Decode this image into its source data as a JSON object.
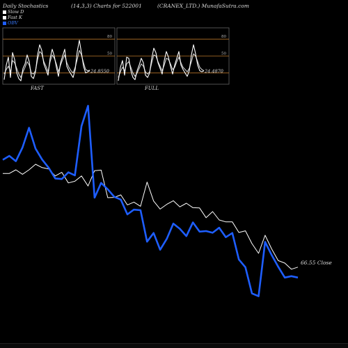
{
  "header": {
    "left": "Daily Stochastics",
    "mid": "(14,3,3) Charts for 522001",
    "right": "(CRANEX_LTD.) MunafaSutra.com"
  },
  "legend": {
    "slow": "Slow  D",
    "fast": "Fast K",
    "obv": "OBV"
  },
  "colors": {
    "obv": "#1e5eff",
    "price": "#ffffff",
    "band": "#b5742a"
  },
  "chart_data": [
    {
      "type": "line",
      "name": "FAST",
      "ylim": [
        0,
        100
      ],
      "levels": [
        80,
        50,
        20
      ],
      "tick_labels": [
        "80",
        "50"
      ],
      "last_value_label": "24.8550",
      "series": [
        {
          "name": "Slow D",
          "values": [
            18,
            26,
            32,
            22,
            42,
            38,
            28,
            18,
            12,
            22,
            30,
            40,
            34,
            20,
            18,
            24,
            44,
            58,
            54,
            40,
            32,
            22,
            40,
            52,
            46,
            36,
            22,
            34,
            44,
            52,
            38,
            30,
            24,
            20,
            30,
            44,
            60,
            52,
            38,
            26,
            24,
            25
          ]
        },
        {
          "name": "Fast K",
          "values": [
            8,
            34,
            48,
            12,
            56,
            44,
            20,
            10,
            6,
            28,
            36,
            52,
            40,
            14,
            10,
            22,
            52,
            70,
            60,
            36,
            26,
            16,
            46,
            62,
            50,
            30,
            14,
            38,
            50,
            62,
            32,
            24,
            18,
            12,
            26,
            58,
            78,
            56,
            32,
            20,
            22,
            24
          ]
        }
      ]
    },
    {
      "type": "line",
      "name": "FULL",
      "ylim": [
        0,
        100
      ],
      "levels": [
        80,
        50,
        20
      ],
      "tick_labels": [
        "80",
        "50"
      ],
      "last_value_label": "24.4870",
      "series": [
        {
          "name": "Slow D",
          "values": [
            12,
            22,
            30,
            24,
            36,
            40,
            30,
            20,
            14,
            20,
            28,
            36,
            32,
            22,
            18,
            22,
            38,
            52,
            50,
            40,
            32,
            24,
            34,
            46,
            44,
            36,
            26,
            30,
            40,
            48,
            38,
            30,
            26,
            22,
            28,
            40,
            54,
            50,
            40,
            30,
            26,
            24
          ]
        },
        {
          "name": "Fast K",
          "values": [
            6,
            30,
            42,
            16,
            48,
            46,
            24,
            12,
            8,
            24,
            34,
            46,
            38,
            16,
            12,
            20,
            46,
            64,
            56,
            38,
            28,
            18,
            42,
            58,
            48,
            32,
            18,
            34,
            46,
            58,
            34,
            26,
            20,
            14,
            24,
            52,
            70,
            54,
            34,
            24,
            22,
            24
          ]
        }
      ]
    },
    {
      "type": "line",
      "name": "Price / OBV",
      "end_label": "66.55 Close",
      "series": [
        {
          "name": "Close",
          "values": [
            100.2,
            100.2,
            101.5,
            99.9,
            101.5,
            103.5,
            102.3,
            101.8,
            99.3,
            100.6,
            96.8,
            97.4,
            99.3,
            95.7,
            101.2,
            101.4,
            91.5,
            91.6,
            92.5,
            88.9,
            89.9,
            88.4,
            97.1,
            90.3,
            87.4,
            89.1,
            90.4,
            88.2,
            89.5,
            87.9,
            87.8,
            84.3,
            86.5,
            83.5,
            82.8,
            82.8,
            79.0,
            79.6,
            75.0,
            71.5,
            78.0,
            73.1,
            68.9,
            68.0,
            65.8,
            66.55
          ]
        },
        {
          "name": "OBV",
          "values": [
            105.1,
            106.5,
            104.6,
            109.5,
            116.6,
            109.1,
            105.2,
            102.2,
            98.4,
            98.2,
            100.6,
            99.5,
            117.2,
            124.5,
            91.5,
            96.8,
            94.5,
            91.8,
            90.8,
            85.5,
            87.2,
            87.0,
            75.7,
            78.8,
            72.8,
            76.7,
            82.2,
            80.3,
            77.7,
            82.6,
            79.3,
            79.5,
            78.9,
            80.7,
            77.3,
            78.8,
            69.3,
            66.5,
            57.1,
            56.1,
            75.6,
            70.9,
            66.7,
            62.8,
            63.3,
            62.8
          ]
        }
      ]
    }
  ]
}
